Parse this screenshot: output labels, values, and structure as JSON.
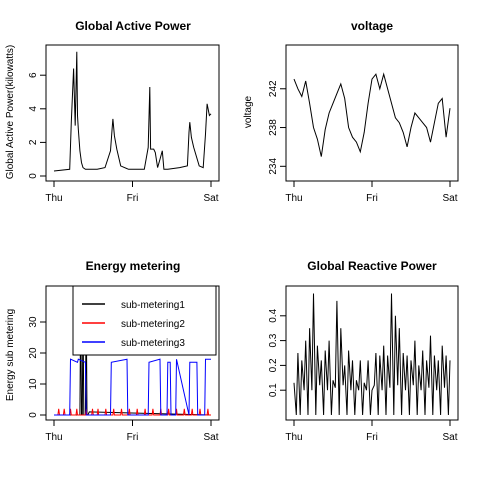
{
  "chart_data": [
    {
      "type": "line",
      "title": "Global Active Power",
      "xlabel": "",
      "ylabel": "Global Active Power(kilowatts)",
      "x_ticks": [
        "Thu",
        "Fri",
        "Sat"
      ],
      "xlim": [
        0,
        2
      ],
      "ylim": [
        0,
        7.5
      ],
      "y_ticks": [
        0,
        2,
        4,
        6
      ],
      "x": [
        0.0,
        0.2,
        0.22,
        0.25,
        0.27,
        0.29,
        0.3,
        0.31,
        0.33,
        0.35,
        0.37,
        0.4,
        0.45,
        0.55,
        0.65,
        0.72,
        0.74,
        0.75,
        0.77,
        0.8,
        0.85,
        0.95,
        1.15,
        1.2,
        1.22,
        1.23,
        1.27,
        1.29,
        1.32,
        1.35,
        1.38,
        1.4,
        1.45,
        1.6,
        1.7,
        1.72,
        1.73,
        1.75,
        1.78,
        1.85,
        1.9,
        1.93,
        1.95,
        1.98,
        2.0
      ],
      "values": [
        0.3,
        0.4,
        3.2,
        6.4,
        3.0,
        7.4,
        3.6,
        2.8,
        1.5,
        0.8,
        0.5,
        0.4,
        0.4,
        0.4,
        0.5,
        1.5,
        2.8,
        3.4,
        2.4,
        1.6,
        0.6,
        0.4,
        0.4,
        1.7,
        5.3,
        1.6,
        1.6,
        1.4,
        0.5,
        1.0,
        1.5,
        0.4,
        0.4,
        0.5,
        0.6,
        2.6,
        3.2,
        2.3,
        1.7,
        0.6,
        0.5,
        2.5,
        4.3,
        3.6,
        3.7
      ],
      "color": "#000000"
    },
    {
      "type": "line",
      "title": "voltage",
      "xlabel": "",
      "ylabel": "voltage",
      "x_ticks": [
        "Thu",
        "Fri",
        "Sat"
      ],
      "xlim": [
        0,
        2
      ],
      "ylim": [
        233,
        246
      ],
      "y_ticks": [
        234,
        238,
        242
      ],
      "x": [
        0.0,
        0.05,
        0.1,
        0.15,
        0.2,
        0.25,
        0.3,
        0.35,
        0.4,
        0.45,
        0.5,
        0.55,
        0.6,
        0.65,
        0.7,
        0.75,
        0.8,
        0.85,
        0.9,
        0.95,
        1.0,
        1.05,
        1.1,
        1.15,
        1.2,
        1.25,
        1.3,
        1.35,
        1.4,
        1.45,
        1.5,
        1.55,
        1.6,
        1.65,
        1.7,
        1.75,
        1.8,
        1.85,
        1.9,
        1.95,
        2.0
      ],
      "values": [
        243.0,
        242.0,
        241.2,
        242.8,
        240.5,
        238.0,
        236.8,
        235.0,
        237.8,
        239.5,
        240.5,
        241.5,
        242.5,
        241.0,
        238.0,
        237.0,
        236.5,
        235.5,
        237.5,
        240.5,
        243.0,
        243.5,
        242.0,
        243.5,
        242.0,
        240.5,
        239.0,
        238.5,
        237.5,
        236.0,
        238.0,
        239.5,
        239.0,
        238.5,
        238.0,
        236.5,
        238.5,
        240.5,
        241.0,
        237.0,
        240.0
      ],
      "color": "#000000"
    },
    {
      "type": "line",
      "title": "Energy metering",
      "xlabel": "",
      "ylabel": "Energy sub metering",
      "x_ticks": [
        "Thu",
        "Fri",
        "Sat"
      ],
      "xlim": [
        0,
        2
      ],
      "ylim": [
        0,
        40
      ],
      "y_ticks": [
        0,
        10,
        20,
        30
      ],
      "legend": {
        "position": "top-right",
        "entries": [
          "sub-metering1",
          "sub-metering2",
          "sub-metering3"
        ]
      },
      "series": [
        {
          "name": "sub-metering1",
          "color": "#000000",
          "x": [
            0.0,
            0.33,
            0.34,
            0.35,
            0.36,
            0.37,
            0.38,
            0.4,
            0.41,
            0.42,
            0.43,
            0.45,
            2.0
          ],
          "values": [
            0,
            0,
            38,
            0,
            0,
            36,
            0,
            0,
            37,
            0,
            0,
            1,
            0
          ]
        },
        {
          "name": "sub-metering2",
          "color": "#ff0000",
          "x": [
            0.0,
            0.05,
            0.06,
            0.07,
            0.12,
            0.13,
            0.14,
            0.2,
            0.21,
            0.22,
            0.28,
            0.29,
            0.3,
            0.4,
            0.41,
            0.42,
            0.48,
            0.49,
            0.5,
            0.55,
            0.56,
            0.57,
            0.65,
            0.66,
            0.67,
            0.75,
            0.76,
            0.77,
            0.85,
            0.86,
            0.87,
            0.95,
            0.96,
            0.97,
            1.05,
            1.06,
            1.07,
            1.15,
            1.16,
            1.17,
            1.25,
            1.26,
            1.27,
            1.35,
            1.36,
            1.37,
            1.45,
            1.46,
            1.47,
            1.55,
            1.56,
            1.57,
            1.65,
            1.66,
            1.67,
            1.75,
            1.76,
            1.77,
            1.85,
            1.86,
            1.87,
            1.95,
            1.96,
            1.97,
            2.0
          ],
          "values": [
            0,
            0,
            2,
            0,
            0,
            2,
            0,
            0,
            2,
            0,
            0,
            2,
            0,
            0,
            2,
            0,
            0,
            2,
            0,
            0,
            2,
            0,
            0,
            2,
            0,
            0,
            2,
            0,
            0,
            2,
            0,
            0,
            2,
            0,
            0,
            2,
            0,
            0,
            2,
            0,
            0,
            2,
            0,
            0,
            2,
            0,
            0,
            2,
            0,
            0,
            2,
            0,
            0,
            2,
            0,
            0,
            2,
            0,
            0,
            2,
            0,
            0,
            2,
            0,
            0
          ]
        },
        {
          "name": "sub-metering3",
          "color": "#0000ff",
          "x": [
            0.0,
            0.2,
            0.21,
            0.3,
            0.31,
            0.4,
            0.41,
            0.72,
            0.73,
            0.93,
            0.94,
            1.2,
            1.21,
            1.35,
            1.36,
            1.44,
            1.45,
            1.48,
            1.49,
            1.55,
            1.56,
            1.72,
            1.73,
            1.82,
            1.83,
            1.92,
            1.93,
            1.97,
            2.0
          ],
          "values": [
            0,
            0,
            18,
            17,
            18,
            17,
            0,
            0,
            17,
            18,
            0,
            0,
            17,
            18,
            0,
            0,
            17,
            17,
            0,
            0,
            18,
            0,
            17,
            17,
            0,
            0,
            18,
            18,
            18
          ]
        }
      ]
    },
    {
      "type": "line",
      "title": "Global Reactive Power",
      "xlabel": "",
      "ylabel": "",
      "x_ticks": [
        "Thu",
        "Fri",
        "Sat"
      ],
      "xlim": [
        0,
        2
      ],
      "ylim": [
        0,
        0.5
      ],
      "y_ticks": [
        0.1,
        0.2,
        0.3,
        0.4
      ],
      "x": [
        0.0,
        0.03,
        0.05,
        0.08,
        0.1,
        0.13,
        0.15,
        0.18,
        0.2,
        0.23,
        0.25,
        0.28,
        0.3,
        0.33,
        0.35,
        0.38,
        0.4,
        0.43,
        0.45,
        0.48,
        0.5,
        0.53,
        0.55,
        0.58,
        0.6,
        0.63,
        0.65,
        0.68,
        0.7,
        0.73,
        0.75,
        0.78,
        0.8,
        0.83,
        0.85,
        0.88,
        0.9,
        0.93,
        0.95,
        0.98,
        1.0,
        1.03,
        1.05,
        1.08,
        1.1,
        1.13,
        1.15,
        1.18,
        1.2,
        1.23,
        1.25,
        1.28,
        1.3,
        1.33,
        1.35,
        1.38,
        1.4,
        1.43,
        1.45,
        1.48,
        1.5,
        1.53,
        1.55,
        1.58,
        1.6,
        1.63,
        1.65,
        1.68,
        1.7,
        1.73,
        1.75,
        1.78,
        1.8,
        1.83,
        1.85,
        1.88,
        1.9,
        1.93,
        1.95,
        1.98,
        2.0
      ],
      "values": [
        0.13,
        0.0,
        0.25,
        0.0,
        0.22,
        0.1,
        0.3,
        0.0,
        0.35,
        0.1,
        0.49,
        0.0,
        0.28,
        0.12,
        0.22,
        0.0,
        0.26,
        0.1,
        0.3,
        0.0,
        0.14,
        0.11,
        0.46,
        0.0,
        0.35,
        0.12,
        0.2,
        0.0,
        0.26,
        0.1,
        0.22,
        0.0,
        0.14,
        0.1,
        0.22,
        0.0,
        0.13,
        0.1,
        0.22,
        0.0,
        0.1,
        0.12,
        0.25,
        0.0,
        0.24,
        0.1,
        0.28,
        0.0,
        0.24,
        0.11,
        0.49,
        0.0,
        0.4,
        0.12,
        0.35,
        0.0,
        0.25,
        0.1,
        0.24,
        0.0,
        0.22,
        0.12,
        0.3,
        0.0,
        0.2,
        0.1,
        0.26,
        0.0,
        0.22,
        0.11,
        0.32,
        0.0,
        0.24,
        0.1,
        0.22,
        0.0,
        0.28,
        0.11,
        0.24,
        0.0,
        0.22
      ],
      "color": "#000000"
    }
  ]
}
